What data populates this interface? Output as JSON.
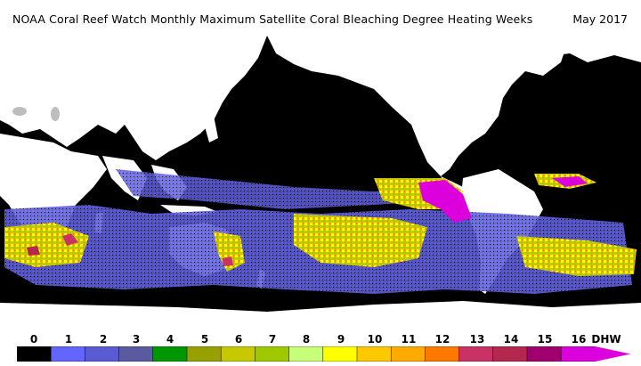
{
  "header": {
    "title": "NOAA Coral Reef Watch Monthly Maximum Satellite Coral Bleaching Degree Heating Weeks",
    "date": "May 2017"
  },
  "map": {
    "land_color": "#ffffff",
    "ocean_color": "#000000"
  },
  "legend": {
    "ticks": [
      "0",
      "1",
      "2",
      "3",
      "4",
      "5",
      "6",
      "7",
      "8",
      "9",
      "10",
      "11",
      "12",
      "13",
      "14",
      "15",
      "16"
    ],
    "unit": "DHW",
    "colors": [
      "#000000",
      "#6464ff",
      "#5a5ad2",
      "#5a5aa0",
      "#009600",
      "#96a000",
      "#c8c800",
      "#a0c800",
      "#c8ff78",
      "#ffff00",
      "#ffc800",
      "#ffaa00",
      "#ff7800",
      "#c83264",
      "#b42850",
      "#a0006e",
      "#dc00dc"
    ]
  }
}
